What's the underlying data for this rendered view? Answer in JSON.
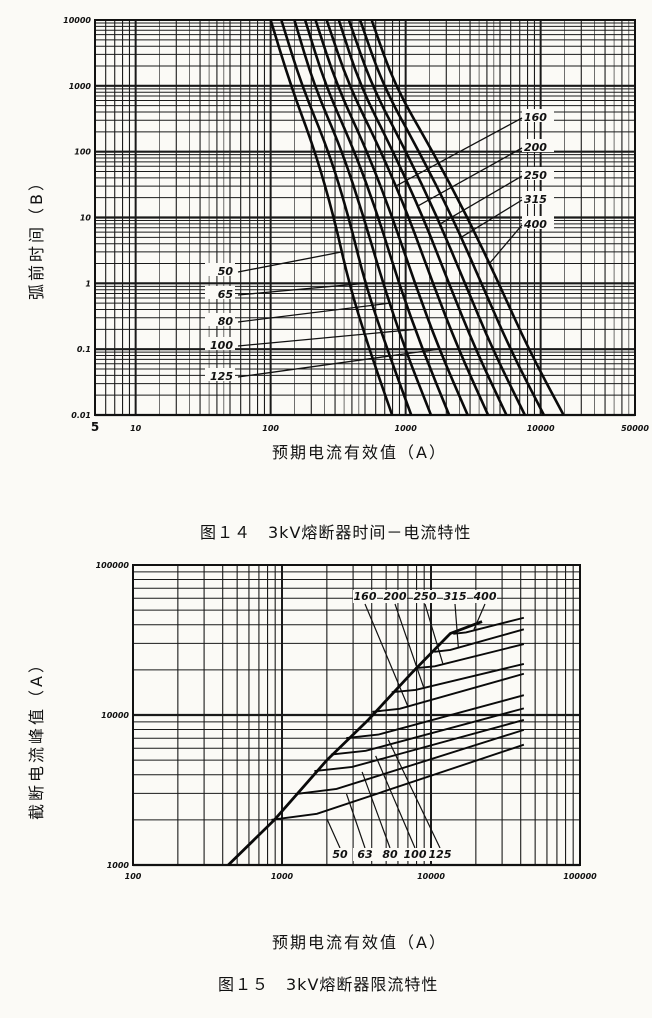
{
  "chart_data": [
    {
      "type": "line",
      "ylabel": "弧前时间（B）",
      "xlabel": "预期电流有效值（A）",
      "caption": "图１４　3kV熔断器时间－电流特性",
      "x_scale": "log",
      "y_scale": "log",
      "xlim": [
        5,
        50000
      ],
      "ylim": [
        0.01,
        10000
      ],
      "grid": true,
      "x_ticks": [
        "5",
        "10",
        "100",
        "1000",
        "10000",
        "50000"
      ],
      "x_tick_values": [
        5,
        10,
        100,
        1000,
        10000,
        50000
      ],
      "y_ticks": [
        "10000",
        "1000",
        "100",
        "10",
        "1",
        "0.1",
        "0.01"
      ],
      "y_tick_values": [
        10000,
        1000,
        100,
        10,
        1,
        0.1,
        0.01
      ],
      "t_values": [
        10000,
        1000,
        100,
        10,
        1,
        0.1,
        0.01
      ],
      "series": [
        {
          "name": "50",
          "x": [
            100,
            141,
            214,
            295,
            380,
            537,
            794
          ]
        },
        {
          "name": "65",
          "x": [
            120,
            170,
            270,
            380,
            500,
            730,
            1100
          ]
        },
        {
          "name": "80",
          "x": [
            150,
            210,
            340,
            490,
            680,
            990,
            1540
          ]
        },
        {
          "name": "100",
          "x": [
            180,
            255,
            420,
            630,
            890,
            1330,
            2100
          ]
        },
        {
          "name": "125",
          "x": [
            215,
            310,
            520,
            800,
            1170,
            1770,
            2880
          ]
        },
        {
          "name": "160",
          "x": [
            260,
            380,
            660,
            1060,
            1590,
            2460,
            4080
          ]
        },
        {
          "name": "200",
          "x": [
            320,
            460,
            810,
            1350,
            2090,
            3290,
            5580
          ]
        },
        {
          "name": "250",
          "x": [
            380,
            560,
            1010,
            1720,
            2750,
            4400,
            7640
          ]
        },
        {
          "name": "315",
          "x": [
            460,
            680,
            1260,
            2220,
            3650,
            5940,
            10570
          ]
        },
        {
          "name": "400",
          "x": [
            560,
            830,
            1590,
            2880,
            4900,
            8130,
            14790
          ]
        }
      ]
    },
    {
      "type": "line",
      "ylabel": "截断电流峰值（A）",
      "xlabel": "预期电流有效值（A）",
      "caption": "图１５　3kV熔断器限流特性",
      "x_scale": "log",
      "y_scale": "log",
      "xlim": [
        100,
        100000
      ],
      "ylim": [
        1000,
        100000
      ],
      "grid": true,
      "x_ticks": [
        "100",
        "1000",
        "10000",
        "100000"
      ],
      "x_tick_values": [
        100,
        1000,
        10000,
        100000
      ],
      "y_ticks": [
        "100000",
        "10000",
        "1000"
      ],
      "y_tick_values": [
        100000,
        10000,
        1000
      ],
      "envelope": {
        "x": [
          436,
          890,
          2000,
          3800,
          7400,
          13500,
          22000
        ],
        "y": [
          1000,
          2000,
          5000,
          9300,
          19000,
          35000,
          42000
        ]
      },
      "series": [
        {
          "name": "50",
          "x": [
            850,
            42000
          ],
          "y": [
            2000,
            6340
          ]
        },
        {
          "name": "63",
          "x": [
            1230,
            42000
          ],
          "y": [
            2970,
            7960
          ]
        },
        {
          "name": "80",
          "x": [
            1650,
            42000
          ],
          "y": [
            4230,
            9270
          ]
        },
        {
          "name": "100",
          "x": [
            2130,
            42000
          ],
          "y": [
            5450,
            11070
          ]
        },
        {
          "name": "125",
          "x": [
            2700,
            42000
          ],
          "y": [
            7020,
            13550
          ]
        },
        {
          "name": "160",
          "x": [
            4040,
            42000
          ],
          "y": [
            10500,
            18830
          ]
        },
        {
          "name": "200",
          "x": [
            5450,
            42000
          ],
          "y": [
            14200,
            21910
          ]
        },
        {
          "name": "250",
          "x": [
            7830,
            42000
          ],
          "y": [
            20500,
            29700
          ]
        },
        {
          "name": "315",
          "x": [
            10500,
            42000
          ],
          "y": [
            26400,
            37270
          ]
        },
        {
          "name": "400",
          "x": [
            14100,
            42000
          ],
          "y": [
            34800,
            44500
          ]
        }
      ]
    }
  ]
}
